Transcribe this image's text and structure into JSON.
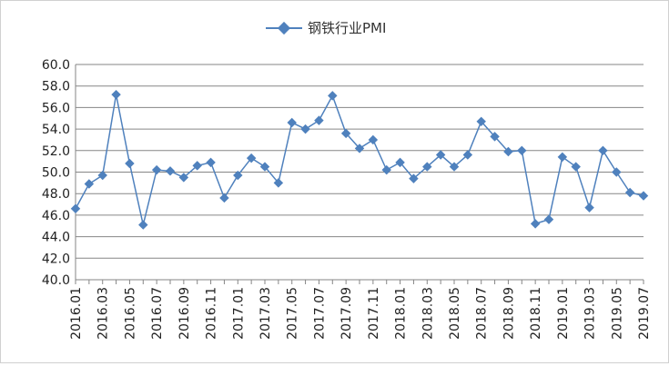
{
  "chart_data": {
    "type": "line",
    "legend": {
      "position": "top",
      "series_name": "钢铁行业PMI"
    },
    "x": [
      "2016.01",
      "2016.02",
      "2016.03",
      "2016.04",
      "2016.05",
      "2016.06",
      "2016.07",
      "2016.08",
      "2016.09",
      "2016.10",
      "2016.11",
      "2016.12",
      "2017.01",
      "2017.02",
      "2017.03",
      "2017.04",
      "2017.05",
      "2017.06",
      "2017.07",
      "2017.08",
      "2017.09",
      "2017.10",
      "2017.11",
      "2017.12",
      "2018.01",
      "2018.02",
      "2018.03",
      "2018.04",
      "2018.05",
      "2018.06",
      "2018.07",
      "2018.08",
      "2018.09",
      "2018.10",
      "2018.11",
      "2018.12",
      "2019.01",
      "2019.02",
      "2019.03",
      "2019.04",
      "2019.05",
      "2019.06",
      "2019.07"
    ],
    "x_tick_labels": [
      "2016.01",
      "2016.03",
      "2016.05",
      "2016.07",
      "2016.09",
      "2016.11",
      "2017.01",
      "2017.03",
      "2017.05",
      "2017.07",
      "2017.09",
      "2017.11",
      "2018.01",
      "2018.03",
      "2018.05",
      "2018.07",
      "2018.09",
      "2018.11",
      "2019.01",
      "2019.03",
      "2019.05",
      "2019.07"
    ],
    "series": [
      {
        "name": "钢铁行业PMI",
        "color": "#4f81bd",
        "values": [
          46.6,
          48.9,
          49.7,
          57.2,
          50.8,
          45.1,
          50.2,
          50.1,
          49.5,
          50.6,
          50.9,
          47.6,
          49.7,
          51.3,
          50.5,
          49.0,
          54.6,
          54.0,
          54.8,
          57.1,
          53.6,
          52.2,
          53.0,
          50.2,
          50.9,
          49.4,
          50.5,
          51.6,
          50.5,
          51.6,
          54.7,
          53.3,
          51.9,
          52.0,
          45.2,
          45.6,
          51.4,
          50.5,
          46.7,
          52.0,
          50.0,
          48.1,
          47.8
        ]
      }
    ],
    "ylim": [
      40.0,
      60.0
    ],
    "yticks": [
      "40.0",
      "42.0",
      "44.0",
      "46.0",
      "48.0",
      "50.0",
      "52.0",
      "54.0",
      "56.0",
      "58.0",
      "60.0"
    ],
    "grid": true
  }
}
